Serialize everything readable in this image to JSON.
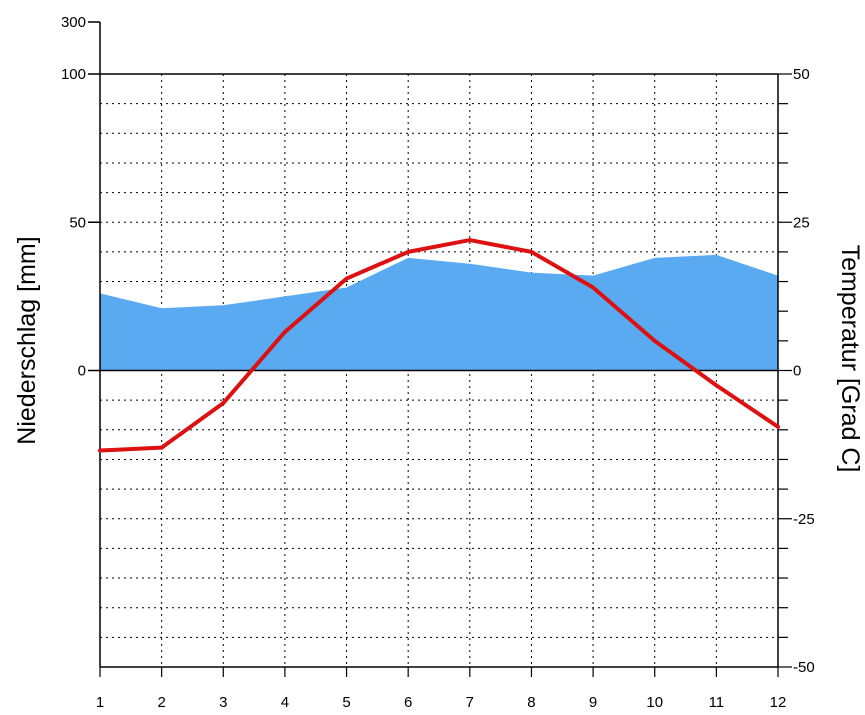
{
  "chart_data": {
    "type": "area",
    "xlabel": "",
    "x": [
      1,
      2,
      3,
      4,
      5,
      6,
      7,
      8,
      9,
      10,
      11,
      12
    ],
    "series": [
      {
        "axis": "left",
        "type": "area",
        "color": "#5aaaf2",
        "values": [
          26,
          21,
          22,
          25,
          28,
          38,
          36,
          33,
          32,
          38,
          39,
          32
        ]
      },
      {
        "axis": "right",
        "type": "line",
        "color": "#dd1111",
        "values": [
          -13.5,
          -13,
          -5.5,
          6.5,
          15.5,
          20,
          22,
          20,
          14,
          5,
          -2.5,
          -9.5
        ]
      }
    ],
    "left_axis": {
      "label": "Niederschlag [mm]",
      "ylim": [
        -100,
        100
      ],
      "ticks": [
        {
          "value": 0,
          "label": "0"
        },
        {
          "value": 50,
          "label": "50"
        },
        {
          "value": 100,
          "label": "100"
        }
      ],
      "break_above": {
        "value": 300,
        "label": "300"
      }
    },
    "right_axis": {
      "label": "Temperatur [Grad C]",
      "ylim": [
        -50,
        50
      ],
      "ticks": [
        {
          "value": -50,
          "label": "-50"
        },
        {
          "value": -25,
          "label": "-25"
        },
        {
          "value": 0,
          "label": "0"
        },
        {
          "value": 25,
          "label": "25"
        },
        {
          "value": 50,
          "label": "50"
        }
      ]
    },
    "x_tick_labels": [
      "1",
      "2",
      "3",
      "4",
      "5",
      "6",
      "7",
      "8",
      "9",
      "10",
      "11",
      "12"
    ],
    "grid": true
  }
}
